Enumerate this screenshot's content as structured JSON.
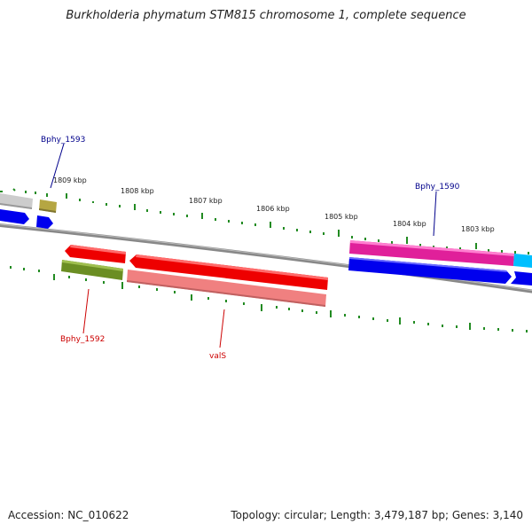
{
  "title": "Burkholderia phymatum STM815 chromosome 1, complete sequence",
  "footer": {
    "accession": "Accession: NC_010622",
    "stats": "Topology: circular; Length: 3,479,187 bp; Genes: 3,140"
  },
  "ticks": [
    {
      "label": "1809 kbp"
    },
    {
      "label": "1808 kbp"
    },
    {
      "label": "1807 kbp"
    },
    {
      "label": "1806 kbp"
    },
    {
      "label": "1805 kbp"
    },
    {
      "label": "1804 kbp"
    },
    {
      "label": "1803 kbp"
    }
  ],
  "gene_labels": [
    {
      "name": "Bphy_1593",
      "color": "#00008b"
    },
    {
      "name": "Bphy_1590",
      "color": "#00008b"
    },
    {
      "name": "Bphy_1592",
      "color": "#cc0000"
    },
    {
      "name": "valS",
      "color": "#cc0000"
    }
  ],
  "colors": {
    "backbone": "#888888",
    "tick": "#228b22",
    "red_gene": "#ee0000",
    "pink_gene": "#f08080",
    "olive_gene": "#6b8e23",
    "khaki_gene": "#b5a642",
    "magenta_gene": "#e0209a",
    "blue_gene": "#0000ee",
    "cyan_gene": "#00bfff",
    "gray_gene": "#cccccc"
  }
}
